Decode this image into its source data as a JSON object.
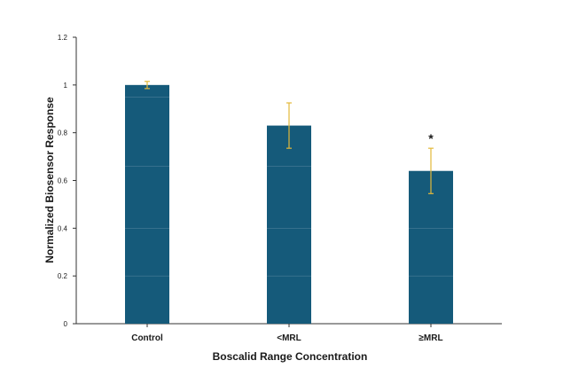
{
  "chart_data": {
    "type": "bar",
    "title": "",
    "xlabel": "Boscalid Range Concentration",
    "ylabel": "Normalized Biosensor Response",
    "categories": [
      "Control",
      "<MRL",
      "≥MRL"
    ],
    "values": [
      1.0,
      0.83,
      0.64
    ],
    "error": [
      0.015,
      0.095,
      0.095
    ],
    "significance": [
      "",
      "",
      "*"
    ],
    "ylim": [
      0,
      1.2
    ],
    "yticks": [
      0,
      0.2,
      0.4,
      0.6,
      0.8,
      1,
      1.2
    ],
    "ytick_labels": [
      "0",
      "0.2",
      "0.4",
      "0.6",
      "0.8",
      "1",
      "1.2"
    ],
    "grid": false,
    "legend": "none",
    "colors": {
      "bar": "#155a7a",
      "error_bar": "#e3b93a",
      "bar_band": "#5f8ea6",
      "axis": "#333333"
    }
  }
}
